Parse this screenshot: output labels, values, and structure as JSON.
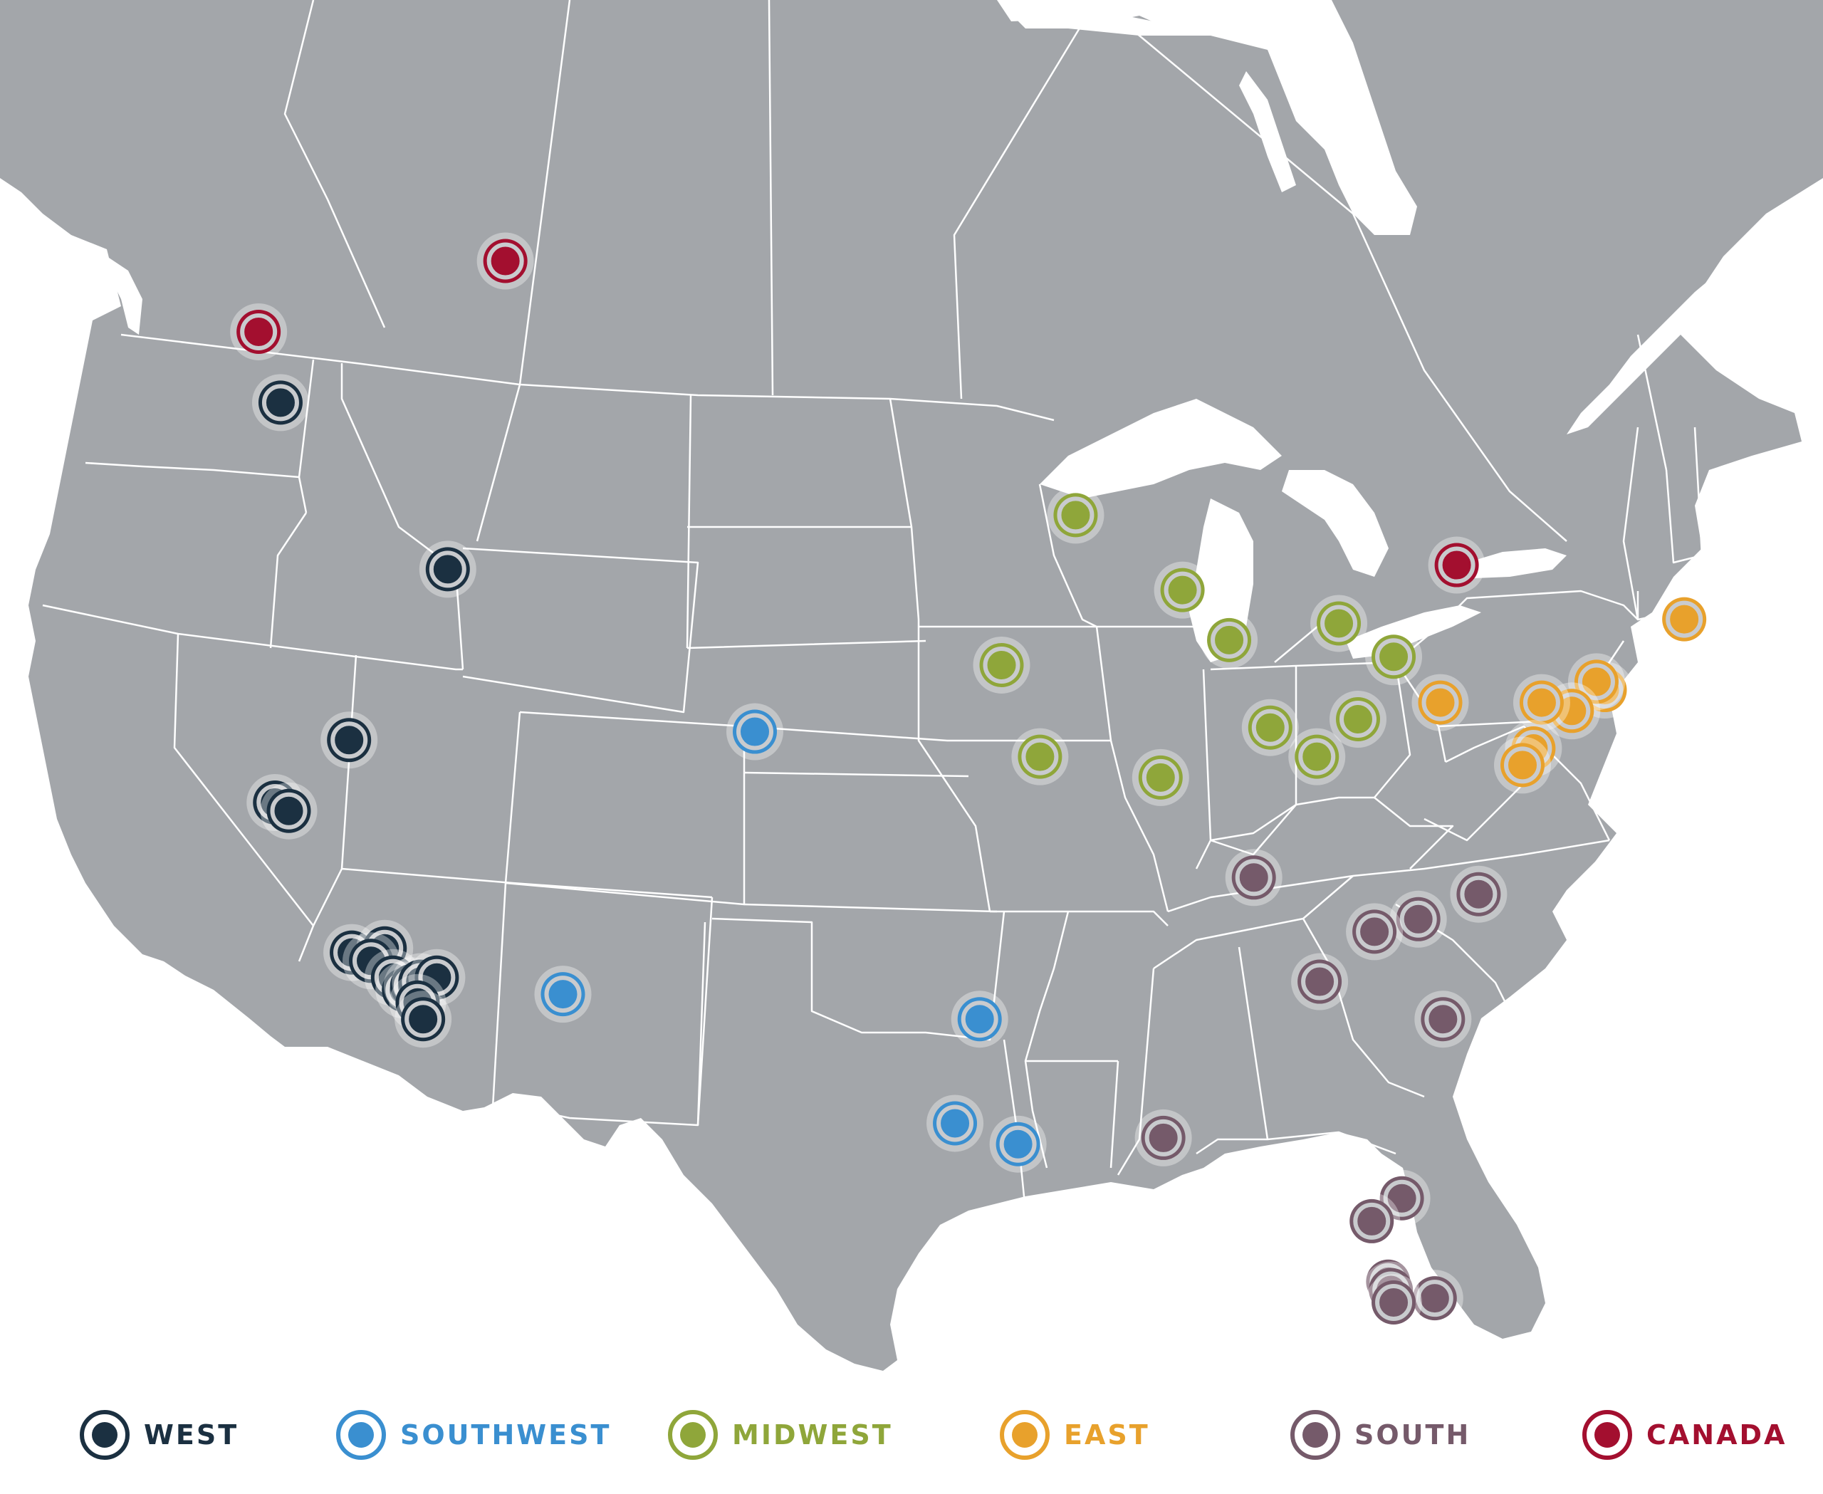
{
  "colors": {
    "land": "#a3a6aa",
    "border": "#ffffff",
    "water": "#ffffff"
  },
  "regions": [
    {
      "key": "west",
      "label": "WEST",
      "color": "#1b3041"
    },
    {
      "key": "southwest",
      "label": "SOUTHWEST",
      "color": "#3a8fd0"
    },
    {
      "key": "midwest",
      "label": "MIDWEST",
      "color": "#8fa63a"
    },
    {
      "key": "east",
      "label": "EAST",
      "color": "#e8a12c"
    },
    {
      "key": "south",
      "label": "SOUTH",
      "color": "#755a6a"
    },
    {
      "key": "canada",
      "label": "CANADA",
      "color": "#a30f2f"
    }
  ],
  "markers": {
    "west": [
      [
        47.6,
        -122.3
      ],
      [
        43.6,
        -116.2
      ],
      [
        39.5,
        -119.8
      ],
      [
        38.0,
        -122.5
      ],
      [
        37.8,
        -122.0
      ],
      [
        34.4,
        -119.7
      ],
      [
        34.5,
        -118.5
      ],
      [
        34.2,
        -119.0
      ],
      [
        33.8,
        -118.2
      ],
      [
        33.5,
        -117.8
      ],
      [
        33.6,
        -117.5
      ],
      [
        33.7,
        -117.2
      ],
      [
        33.8,
        -116.6
      ],
      [
        33.2,
        -117.3
      ],
      [
        32.8,
        -117.1
      ]
    ],
    "southwest": [
      [
        39.7,
        -105.0
      ],
      [
        33.4,
        -112.0
      ],
      [
        32.8,
        -96.8
      ],
      [
        30.3,
        -97.7
      ],
      [
        29.8,
        -95.4
      ]
    ],
    "midwest": [
      [
        44.9,
        -93.3
      ],
      [
        43.1,
        -89.4
      ],
      [
        41.9,
        -87.7
      ],
      [
        42.3,
        -83.7
      ],
      [
        41.5,
        -81.7
      ],
      [
        41.3,
        -96.0
      ],
      [
        39.8,
        -86.2
      ],
      [
        39.1,
        -84.5
      ],
      [
        40.0,
        -83.0
      ],
      [
        39.1,
        -94.6
      ],
      [
        38.6,
        -90.2
      ]
    ],
    "east": [
      [
        42.4,
        -71.1
      ],
      [
        40.7,
        -74.0
      ],
      [
        40.9,
        -74.3
      ],
      [
        40.2,
        -75.2
      ],
      [
        40.4,
        -76.3
      ],
      [
        40.4,
        -80.0
      ],
      [
        39.3,
        -76.6
      ],
      [
        38.9,
        -77.0
      ]
    ],
    "south": [
      [
        36.2,
        -86.8
      ],
      [
        35.8,
        -78.6
      ],
      [
        35.2,
        -80.8
      ],
      [
        34.9,
        -82.4
      ],
      [
        33.7,
        -84.4
      ],
      [
        32.8,
        -79.9
      ],
      [
        29.95,
        -90.1
      ],
      [
        28.5,
        -81.4
      ],
      [
        27.95,
        -82.5
      ],
      [
        26.5,
        -81.9
      ],
      [
        26.1,
        -80.2
      ],
      [
        26.3,
        -81.8
      ],
      [
        26.0,
        -81.7
      ]
    ],
    "canada": [
      [
        49.3,
        -123.1
      ],
      [
        51.0,
        -114.1
      ],
      [
        43.7,
        -79.4
      ]
    ]
  }
}
